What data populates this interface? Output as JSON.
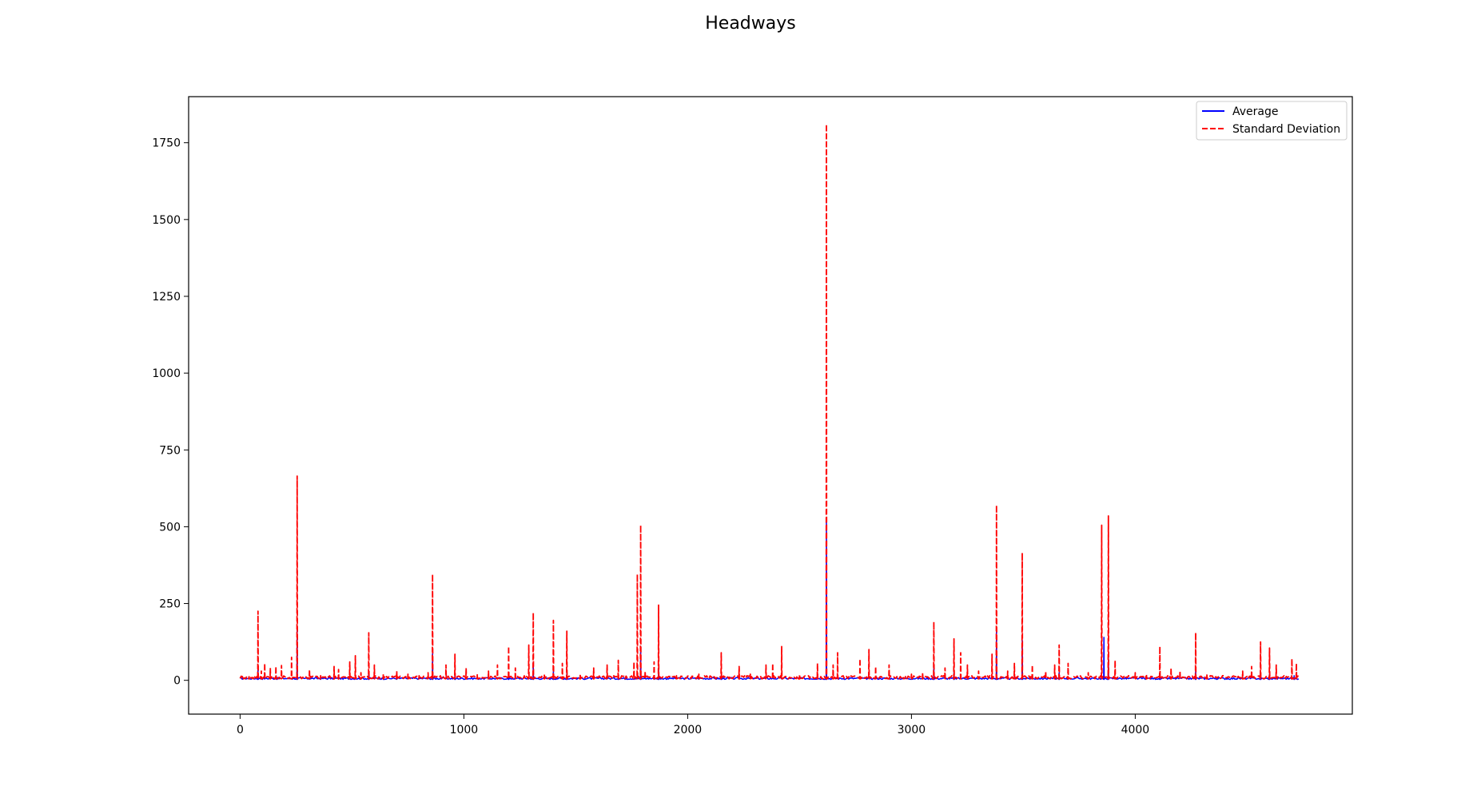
{
  "chart_data": {
    "type": "line",
    "title": "Headways",
    "xlabel": "",
    "ylabel": "",
    "xlim": [
      -230,
      4970
    ],
    "ylim": [
      -110,
      1900
    ],
    "xticks": [
      0,
      1000,
      2000,
      3000,
      4000
    ],
    "yticks": [
      0,
      250,
      500,
      750,
      1000,
      1250,
      1500,
      1750
    ],
    "grid": false,
    "legend_position": "top-right",
    "x_max": 4730,
    "series": [
      {
        "name": "Average",
        "color": "#0000ff",
        "style": "solid",
        "baseline": 3,
        "spikes": [
          [
            80,
            40
          ],
          [
            255,
            175
          ],
          [
            575,
            30
          ],
          [
            860,
            90
          ],
          [
            960,
            20
          ],
          [
            1200,
            25
          ],
          [
            1310,
            60
          ],
          [
            1400,
            30
          ],
          [
            1460,
            25
          ],
          [
            1790,
            110
          ],
          [
            1870,
            40
          ],
          [
            2150,
            15
          ],
          [
            2620,
            530
          ],
          [
            3100,
            50
          ],
          [
            3190,
            30
          ],
          [
            3380,
            160
          ],
          [
            3495,
            130
          ],
          [
            3660,
            25
          ],
          [
            3860,
            140
          ],
          [
            3880,
            80
          ],
          [
            4110,
            20
          ],
          [
            4270,
            30
          ],
          [
            4560,
            25
          ],
          [
            4600,
            20
          ],
          [
            4710,
            15
          ]
        ]
      },
      {
        "name": "Standard Deviation",
        "color": "#ff0000",
        "style": "dashed",
        "baseline": 5,
        "spikes": [
          [
            15,
            10
          ],
          [
            40,
            12
          ],
          [
            60,
            8
          ],
          [
            80,
            225
          ],
          [
            95,
            30
          ],
          [
            110,
            55
          ],
          [
            135,
            40
          ],
          [
            160,
            45
          ],
          [
            185,
            48
          ],
          [
            230,
            75
          ],
          [
            255,
            665
          ],
          [
            310,
            35
          ],
          [
            360,
            15
          ],
          [
            420,
            45
          ],
          [
            440,
            35
          ],
          [
            490,
            60
          ],
          [
            515,
            80
          ],
          [
            540,
            25
          ],
          [
            575,
            155
          ],
          [
            600,
            50
          ],
          [
            640,
            20
          ],
          [
            700,
            30
          ],
          [
            750,
            20
          ],
          [
            800,
            15
          ],
          [
            840,
            25
          ],
          [
            860,
            345
          ],
          [
            920,
            50
          ],
          [
            960,
            85
          ],
          [
            1010,
            40
          ],
          [
            1060,
            20
          ],
          [
            1110,
            30
          ],
          [
            1150,
            50
          ],
          [
            1200,
            110
          ],
          [
            1230,
            40
          ],
          [
            1290,
            115
          ],
          [
            1310,
            220
          ],
          [
            1360,
            20
          ],
          [
            1400,
            195
          ],
          [
            1440,
            55
          ],
          [
            1460,
            160
          ],
          [
            1520,
            20
          ],
          [
            1580,
            40
          ],
          [
            1640,
            50
          ],
          [
            1690,
            65
          ],
          [
            1760,
            60
          ],
          [
            1775,
            345
          ],
          [
            1790,
            505
          ],
          [
            1810,
            30
          ],
          [
            1850,
            60
          ],
          [
            1870,
            245
          ],
          [
            1950,
            15
          ],
          [
            2050,
            20
          ],
          [
            2150,
            90
          ],
          [
            2230,
            45
          ],
          [
            2280,
            20
          ],
          [
            2350,
            50
          ],
          [
            2380,
            55
          ],
          [
            2420,
            110
          ],
          [
            2500,
            20
          ],
          [
            2580,
            55
          ],
          [
            2620,
            1810
          ],
          [
            2650,
            50
          ],
          [
            2670,
            90
          ],
          [
            2770,
            70
          ],
          [
            2810,
            100
          ],
          [
            2840,
            45
          ],
          [
            2900,
            50
          ],
          [
            3000,
            20
          ],
          [
            3050,
            25
          ],
          [
            3100,
            190
          ],
          [
            3150,
            40
          ],
          [
            3190,
            135
          ],
          [
            3220,
            90
          ],
          [
            3250,
            50
          ],
          [
            3300,
            30
          ],
          [
            3360,
            85
          ],
          [
            3380,
            570
          ],
          [
            3430,
            30
          ],
          [
            3460,
            55
          ],
          [
            3495,
            415
          ],
          [
            3540,
            50
          ],
          [
            3600,
            30
          ],
          [
            3640,
            50
          ],
          [
            3660,
            115
          ],
          [
            3700,
            55
          ],
          [
            3790,
            25
          ],
          [
            3850,
            505
          ],
          [
            3880,
            535
          ],
          [
            3910,
            65
          ],
          [
            4000,
            25
          ],
          [
            4050,
            20
          ],
          [
            4110,
            110
          ],
          [
            4160,
            40
          ],
          [
            4200,
            30
          ],
          [
            4270,
            155
          ],
          [
            4320,
            20
          ],
          [
            4480,
            30
          ],
          [
            4520,
            45
          ],
          [
            4560,
            125
          ],
          [
            4600,
            105
          ],
          [
            4630,
            50
          ],
          [
            4700,
            70
          ],
          [
            4720,
            55
          ]
        ]
      }
    ]
  }
}
